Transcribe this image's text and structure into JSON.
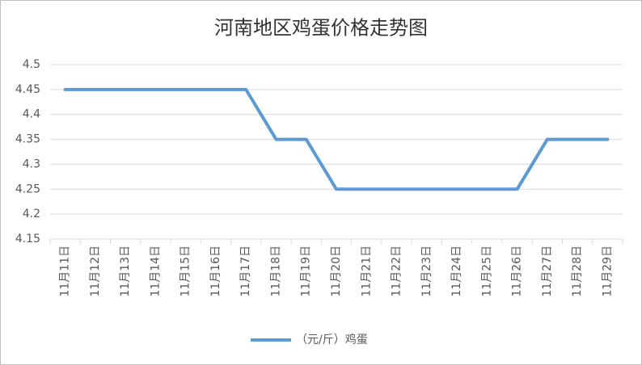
{
  "chart_data": {
    "type": "line",
    "title": "河南地区鸡蛋价格走势图",
    "categories": [
      "11月11日",
      "11月12日",
      "11月13日",
      "11月14日",
      "11月15日",
      "11月16日",
      "11月17日",
      "11月18日",
      "11月19日",
      "11月20日",
      "11月21日",
      "11月22日",
      "11月23日",
      "11月24日",
      "11月25日",
      "11月26日",
      "11月27日",
      "11月28日",
      "11月29日"
    ],
    "series": [
      {
        "name": "（元/斤）鸡蛋",
        "color": "#5b9bd5",
        "values": [
          4.45,
          4.45,
          4.45,
          4.45,
          4.45,
          4.45,
          4.45,
          4.35,
          4.35,
          4.25,
          4.25,
          4.25,
          4.25,
          4.25,
          4.25,
          4.25,
          4.35,
          4.35,
          4.35
        ]
      }
    ],
    "ylim": [
      4.15,
      4.5
    ],
    "yticks": [
      4.15,
      4.2,
      4.25,
      4.3,
      4.35,
      4.4,
      4.45,
      4.5
    ],
    "grid": true,
    "legend": "bottom"
  }
}
